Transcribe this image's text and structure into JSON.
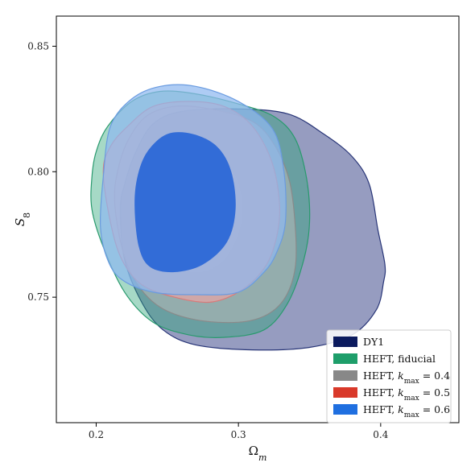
{
  "chart_data": {
    "type": "contour",
    "title": "",
    "xlabel": "Ω",
    "xlabel_sub": "m",
    "ylabel": "S",
    "ylabel_sub": "8",
    "xlim": [
      0.172,
      0.455
    ],
    "ylim": [
      0.7,
      0.862
    ],
    "xticks": [
      "0.2",
      "0.3",
      "0.4"
    ],
    "xtick_values": [
      0.2,
      0.3,
      0.4
    ],
    "yticks": [
      "0.75",
      "0.80",
      "0.85"
    ],
    "ytick_values": [
      0.75,
      0.8,
      0.85
    ],
    "grid": false,
    "legend_position": "bottom-right",
    "legend": [
      {
        "label": "DY1",
        "color": "#0b1a5e"
      },
      {
        "label": "HEFT, fiducial",
        "color": "#1e9e6a"
      },
      {
        "label": "HEFT, k_max = 0.4",
        "color": "#888888",
        "math": "k",
        "math_sub": "max",
        "prefix": "HEFT, ",
        "suffix": " = 0.4"
      },
      {
        "label": "HEFT, k_max = 0.5",
        "color": "#d9392a",
        "math": "k",
        "math_sub": "max",
        "prefix": "HEFT, ",
        "suffix": " = 0.5"
      },
      {
        "label": "HEFT, k_max = 0.6",
        "color": "#1f6fe0",
        "math": "k",
        "math_sub": "max",
        "prefix": "HEFT, ",
        "suffix": " = 0.6"
      }
    ],
    "series": [
      {
        "name": "DY1",
        "fill": "#3f4a8c",
        "fill_opacity": 0.55,
        "stroke": "#283577",
        "contours": [
          [
            [
              0.217,
              0.785
            ],
            [
              0.22,
              0.765
            ],
            [
              0.232,
              0.748
            ],
            [
              0.247,
              0.737
            ],
            [
              0.27,
              0.731
            ],
            [
              0.31,
              0.729
            ],
            [
              0.35,
              0.73
            ],
            [
              0.38,
              0.735
            ],
            [
              0.397,
              0.745
            ],
            [
              0.402,
              0.756
            ],
            [
              0.403,
              0.763
            ],
            [
              0.398,
              0.777
            ],
            [
              0.392,
              0.795
            ],
            [
              0.38,
              0.806
            ],
            [
              0.36,
              0.815
            ],
            [
              0.335,
              0.823
            ],
            [
              0.3,
              0.825
            ],
            [
              0.26,
              0.824
            ],
            [
              0.24,
              0.819
            ],
            [
              0.228,
              0.808
            ],
            [
              0.22,
              0.795
            ]
          ]
        ]
      },
      {
        "name": "HEFT, fiducial",
        "fill": "#2aa477",
        "fill_opacity": 0.42,
        "stroke": "#2a9a6e",
        "contours": [
          [
            [
              0.197,
              0.798
            ],
            [
              0.197,
              0.785
            ],
            [
              0.205,
              0.77
            ],
            [
              0.22,
              0.752
            ],
            [
              0.24,
              0.74
            ],
            [
              0.265,
              0.735
            ],
            [
              0.29,
              0.734
            ],
            [
              0.318,
              0.737
            ],
            [
              0.335,
              0.748
            ],
            [
              0.346,
              0.765
            ],
            [
              0.35,
              0.78
            ],
            [
              0.348,
              0.797
            ],
            [
              0.34,
              0.813
            ],
            [
              0.325,
              0.822
            ],
            [
              0.3,
              0.827
            ],
            [
              0.27,
              0.831
            ],
            [
              0.245,
              0.832
            ],
            [
              0.225,
              0.828
            ],
            [
              0.208,
              0.818
            ],
            [
              0.2,
              0.808
            ]
          ]
        ]
      },
      {
        "name": "HEFT, k_max = 0.4",
        "fill": "#b8b8b8",
        "fill_opacity": 0.55,
        "stroke": "#8a8a8a",
        "contours": [
          [
            [
              0.213,
              0.788
            ],
            [
              0.218,
              0.77
            ],
            [
              0.228,
              0.756
            ],
            [
              0.245,
              0.746
            ],
            [
              0.27,
              0.741
            ],
            [
              0.3,
              0.74
            ],
            [
              0.32,
              0.743
            ],
            [
              0.333,
              0.75
            ],
            [
              0.34,
              0.762
            ],
            [
              0.34,
              0.778
            ],
            [
              0.336,
              0.796
            ],
            [
              0.326,
              0.81
            ],
            [
              0.31,
              0.82
            ],
            [
              0.28,
              0.825
            ],
            [
              0.255,
              0.826
            ],
            [
              0.235,
              0.822
            ],
            [
              0.222,
              0.812
            ],
            [
              0.215,
              0.8
            ]
          ],
          [
            [
              0.225,
              0.79
            ],
            [
              0.235,
              0.775
            ],
            [
              0.25,
              0.765
            ],
            [
              0.27,
              0.76
            ],
            [
              0.29,
              0.765
            ],
            [
              0.302,
              0.78
            ],
            [
              0.3,
              0.795
            ],
            [
              0.288,
              0.806
            ],
            [
              0.27,
              0.811
            ],
            [
              0.25,
              0.81
            ],
            [
              0.235,
              0.802
            ]
          ]
        ]
      },
      {
        "name": "HEFT, k_max = 0.5",
        "fill": "#f0a4a4",
        "fill_opacity": 0.65,
        "stroke": "#d97a7a",
        "contours": [
          [
            [
              0.205,
              0.8
            ],
            [
              0.21,
              0.78
            ],
            [
              0.218,
              0.765
            ],
            [
              0.232,
              0.755
            ],
            [
              0.255,
              0.75
            ],
            [
              0.28,
              0.748
            ],
            [
              0.3,
              0.752
            ],
            [
              0.316,
              0.76
            ],
            [
              0.325,
              0.77
            ],
            [
              0.329,
              0.785
            ],
            [
              0.324,
              0.803
            ],
            [
              0.31,
              0.818
            ],
            [
              0.29,
              0.826
            ],
            [
              0.265,
              0.828
            ],
            [
              0.24,
              0.826
            ],
            [
              0.222,
              0.818
            ],
            [
              0.21,
              0.81
            ]
          ]
        ]
      },
      {
        "name": "HEFT, k_max = 0.6",
        "fill": "#8fb8f0",
        "fill_opacity": 0.72,
        "stroke": "#6a9be0",
        "contours": [
          [
            [
              0.205,
              0.798
            ],
            [
              0.203,
              0.778
            ],
            [
              0.208,
              0.765
            ],
            [
              0.218,
              0.757
            ],
            [
              0.24,
              0.752
            ],
            [
              0.27,
              0.751
            ],
            [
              0.3,
              0.752
            ],
            [
              0.318,
              0.76
            ],
            [
              0.327,
              0.768
            ],
            [
              0.333,
              0.78
            ],
            [
              0.332,
              0.8
            ],
            [
              0.324,
              0.817
            ],
            [
              0.3,
              0.828
            ],
            [
              0.27,
              0.834
            ],
            [
              0.245,
              0.834
            ],
            [
              0.225,
              0.829
            ],
            [
              0.21,
              0.818
            ]
          ],
          [
            [
              0.227,
              0.786
            ],
            [
              0.23,
              0.77
            ],
            [
              0.238,
              0.762
            ],
            [
              0.255,
              0.76
            ],
            [
              0.275,
              0.763
            ],
            [
              0.292,
              0.772
            ],
            [
              0.298,
              0.785
            ],
            [
              0.295,
              0.8
            ],
            [
              0.285,
              0.81
            ],
            [
              0.268,
              0.815
            ],
            [
              0.25,
              0.815
            ],
            [
              0.236,
              0.808
            ],
            [
              0.229,
              0.798
            ]
          ]
        ]
      }
    ],
    "core_fill": "#1f5fd6"
  }
}
